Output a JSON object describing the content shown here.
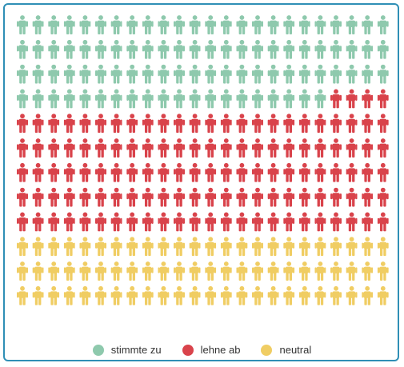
{
  "chart_data": {
    "type": "pictogram",
    "rows": 12,
    "columns": 24,
    "icon": "person-icon",
    "series": [
      {
        "name": "stimmte zu",
        "count": 92,
        "color": "#8ec9ad"
      },
      {
        "name": "lehne ab",
        "count": 124,
        "color": "#d9434b"
      },
      {
        "name": "neutral",
        "count": 72,
        "color": "#f0cd63"
      }
    ],
    "legend_position": "bottom-center"
  }
}
